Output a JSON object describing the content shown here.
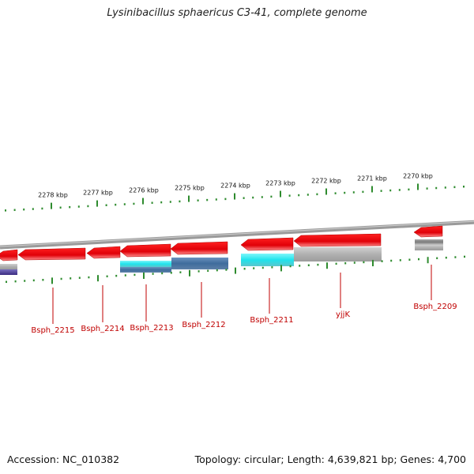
{
  "title": "Lysinibacillus sphaericus C3-41, complete genome",
  "accession": "Accession: NC_010382",
  "summary": "Topology: circular; Length: 4,639,821 bp; Genes: 4,700",
  "kbp_ticks": [
    "2278 kbp",
    "2277 kbp",
    "2276 kbp",
    "2275 kbp",
    "2274 kbp",
    "2273 kbp",
    "2272 kbp",
    "2271 kbp",
    "2270 kbp"
  ],
  "genes": [
    {
      "label": "Bsph_2215",
      "strand": "reverse"
    },
    {
      "label": "Bsph_2214",
      "strand": "reverse"
    },
    {
      "label": "Bsph_2213",
      "strand": "reverse"
    },
    {
      "label": "Bsph_2212",
      "strand": "reverse"
    },
    {
      "label": "Bsph_2211",
      "strand": "reverse"
    },
    {
      "label": "yjjK",
      "strand": "reverse"
    },
    {
      "label": "Bsph_2209",
      "strand": "reverse"
    }
  ],
  "colors": {
    "cds": "#e8000b",
    "backbone": "#8a8a8a",
    "tick": "#2e8b2e",
    "label": "#c00000",
    "cog_cyan": "#22e0e8",
    "cog_steel": "#4a78a8",
    "cog_gray": "#b8b8b8",
    "cog_purple": "#4b3b8f"
  }
}
